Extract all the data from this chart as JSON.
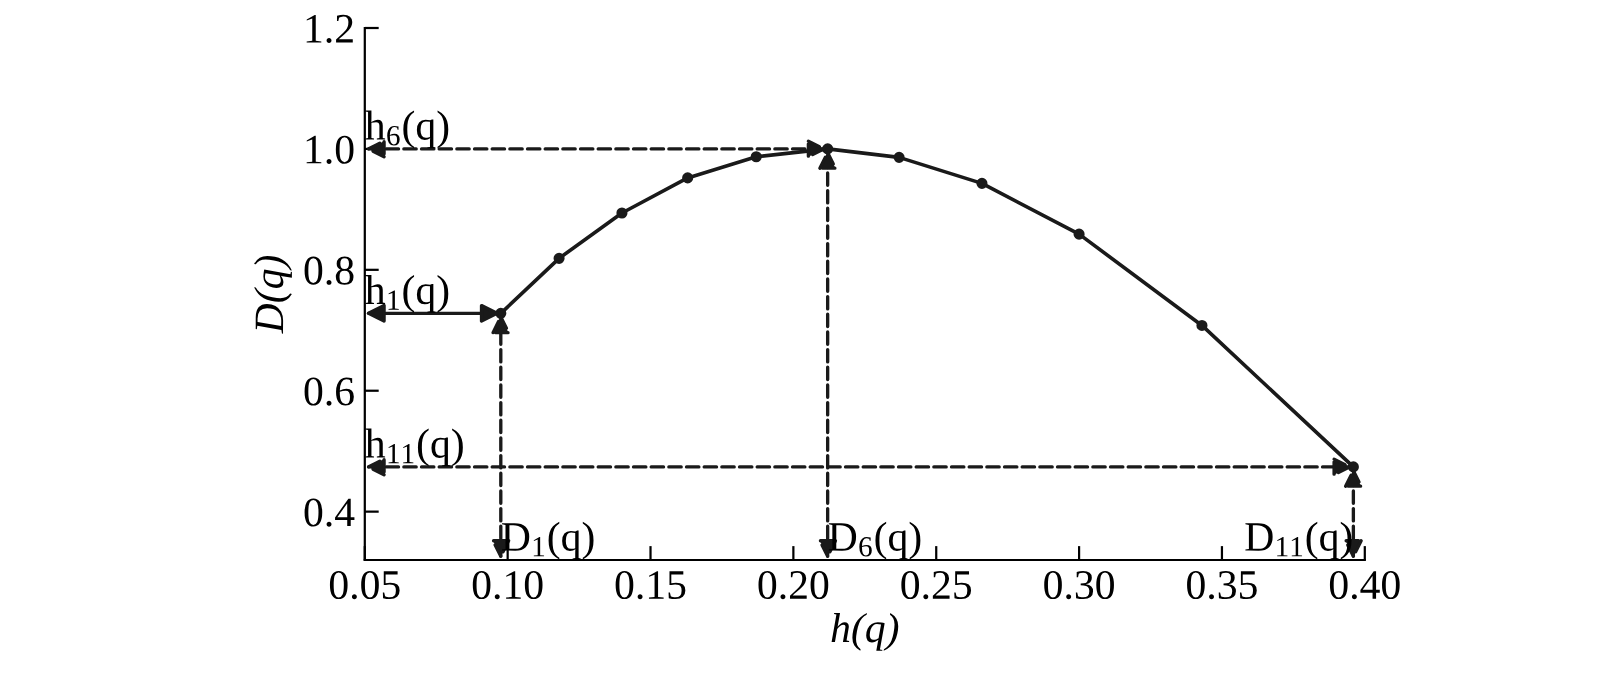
{
  "chart_data": {
    "type": "line",
    "xlabel": "h(q)",
    "ylabel": "D(q)",
    "x": [
      0.0976,
      0.118,
      0.14,
      0.163,
      0.187,
      0.212,
      0.237,
      0.266,
      0.3,
      0.343,
      0.396
    ],
    "series": [
      {
        "color": "#1a1a1a",
        "values": [
          0.728,
          0.819,
          0.894,
          0.952,
          0.987,
          1.0,
          0.986,
          0.943,
          0.859,
          0.708,
          0.474
        ]
      }
    ],
    "marker": "circle",
    "line_style": "solid",
    "xlim": [
      0.05,
      0.4
    ],
    "ylim": [
      0.32,
      1.2
    ],
    "xticks": [
      {
        "value": 0.05,
        "label": "0.05"
      },
      {
        "value": 0.1,
        "label": "0.10"
      },
      {
        "value": 0.15,
        "label": "0.15"
      },
      {
        "value": 0.2,
        "label": "0.20"
      },
      {
        "value": 0.25,
        "label": "0.25"
      },
      {
        "value": 0.3,
        "label": "0.30"
      },
      {
        "value": 0.35,
        "label": "0.35"
      },
      {
        "value": 0.4,
        "label": "0.40"
      }
    ],
    "yticks": [
      0.4,
      0.6,
      0.8,
      {
        "value": 1.0,
        "label": "1.0"
      },
      1.2
    ],
    "annotations": [
      {
        "text": "h$_{1}$(q)",
        "x": 0.0976,
        "y": 0.728
      },
      {
        "text": "D$_{1}$(q)",
        "x": 0.0976,
        "y": 0.728
      },
      {
        "text": "h$_{6}$(q)",
        "x": 0.212,
        "y": 1.0
      },
      {
        "text": "D$_{6}$(q)",
        "x": 0.212,
        "y": 1.0
      },
      {
        "text": "h$_{11}$(q)",
        "x": 0.396,
        "y": 0.474
      },
      {
        "text": "D$_{11}$(q)",
        "x": 0.396,
        "y": 0.474
      }
    ]
  }
}
